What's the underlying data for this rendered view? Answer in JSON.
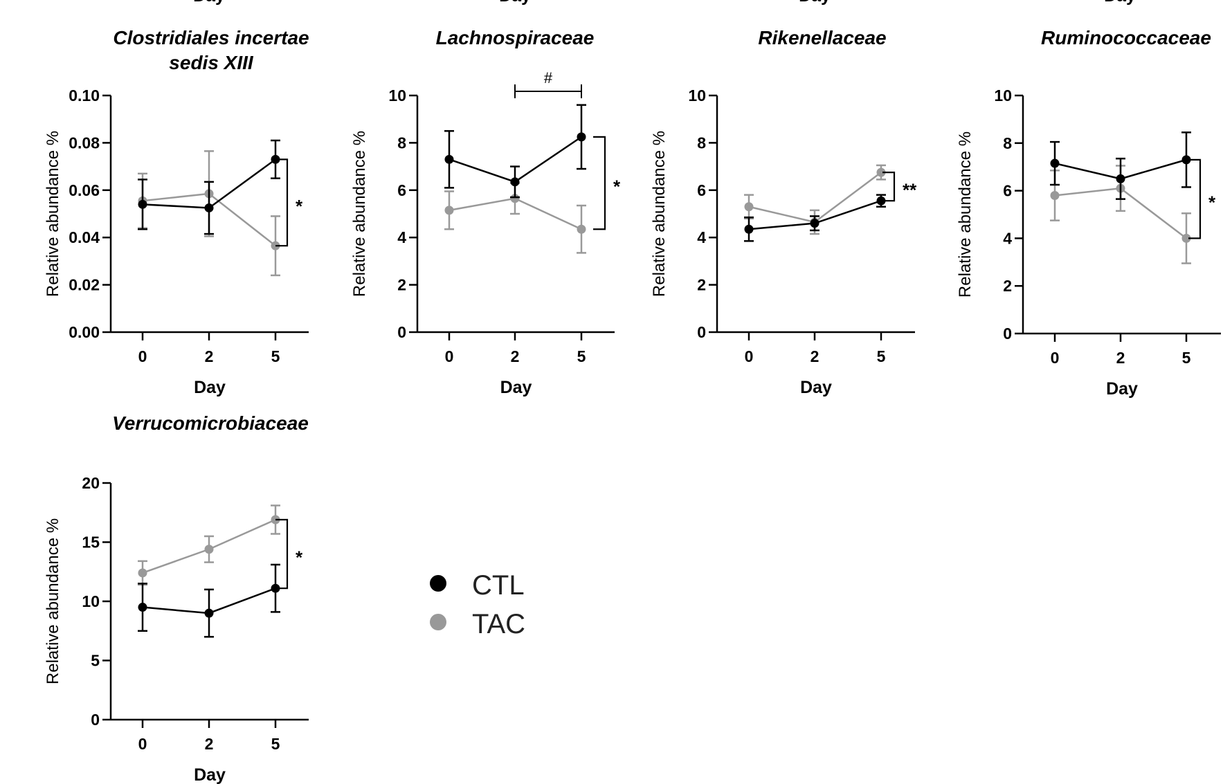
{
  "legend": [
    {
      "name": "CTL",
      "color": "#000000"
    },
    {
      "name": "TAC",
      "color": "#999999"
    }
  ],
  "top_row_xlabels": [
    "Day",
    "Day",
    "Day",
    "Day"
  ],
  "chart_data": [
    {
      "type": "line",
      "title": [
        "Clostridiales incertae",
        "sedis XIII"
      ],
      "xlabel": "Day",
      "ylabel": "Relative abundance %",
      "categories": [
        "0",
        "2",
        "5"
      ],
      "ylim": [
        0,
        0.1
      ],
      "yticks": [
        "0.00",
        "0.02",
        "0.04",
        "0.06",
        "0.08",
        "0.10"
      ],
      "series": [
        {
          "name": "CTL",
          "color": "#000000",
          "values": [
            0.054,
            0.0525,
            0.073
          ],
          "errors": [
            0.0105,
            0.011,
            0.008
          ]
        },
        {
          "name": "TAC",
          "color": "#999999",
          "values": [
            0.0555,
            0.0585,
            0.0365
          ],
          "errors": [
            0.0115,
            0.018,
            0.0125
          ]
        }
      ],
      "bracket": {
        "series_at": 2,
        "label": "*"
      }
    },
    {
      "type": "line",
      "title": [
        "Lachnospiraceae"
      ],
      "xlabel": "Day",
      "ylabel": "Relative abundance %",
      "categories": [
        "0",
        "2",
        "5"
      ],
      "ylim": [
        0,
        10
      ],
      "yticks": [
        "0",
        "2",
        "4",
        "6",
        "8",
        "10"
      ],
      "series": [
        {
          "name": "CTL",
          "color": "#000000",
          "values": [
            7.3,
            6.35,
            8.25
          ],
          "errors": [
            1.2,
            0.65,
            1.35
          ]
        },
        {
          "name": "TAC",
          "color": "#999999",
          "values": [
            5.15,
            5.65,
            4.35
          ],
          "errors": [
            0.8,
            0.65,
            1.0
          ]
        }
      ],
      "bracket": {
        "series_at": 2,
        "label": "*"
      },
      "pair_annotation": {
        "from": 1,
        "to": 2,
        "label": "#"
      }
    },
    {
      "type": "line",
      "title": [
        "Rikenellaceae"
      ],
      "xlabel": "Day",
      "ylabel": "Relative abundance %",
      "categories": [
        "0",
        "2",
        "5"
      ],
      "ylim": [
        0,
        10
      ],
      "yticks": [
        "0",
        "2",
        "4",
        "6",
        "8",
        "10"
      ],
      "series": [
        {
          "name": "CTL",
          "color": "#000000",
          "values": [
            4.35,
            4.6,
            5.55
          ],
          "errors": [
            0.5,
            0.3,
            0.25
          ]
        },
        {
          "name": "TAC",
          "color": "#999999",
          "values": [
            5.3,
            4.65,
            6.75
          ],
          "errors": [
            0.5,
            0.5,
            0.3
          ]
        }
      ],
      "bracket": {
        "series_at": 2,
        "label": "**"
      }
    },
    {
      "type": "line",
      "title": [
        "Ruminococcaceae"
      ],
      "xlabel": "Day",
      "ylabel": "Relative abundance %",
      "categories": [
        "0",
        "2",
        "5"
      ],
      "ylim": [
        0,
        10
      ],
      "yticks": [
        "0",
        "2",
        "4",
        "6",
        "8",
        "10"
      ],
      "series": [
        {
          "name": "CTL",
          "color": "#000000",
          "values": [
            7.15,
            6.5,
            7.3
          ],
          "errors": [
            0.9,
            0.85,
            1.15
          ]
        },
        {
          "name": "TAC",
          "color": "#999999",
          "values": [
            5.8,
            6.1,
            4.0
          ],
          "errors": [
            1.05,
            0.95,
            1.05
          ]
        }
      ],
      "bracket": {
        "series_at": 2,
        "label": "*"
      }
    },
    {
      "type": "line",
      "title": [
        "Verrucomicrobiaceae"
      ],
      "xlabel": "Day",
      "ylabel": "Relative abundance %",
      "categories": [
        "0",
        "2",
        "5"
      ],
      "ylim": [
        0,
        20
      ],
      "yticks": [
        "0",
        "5",
        "10",
        "15",
        "20"
      ],
      "series": [
        {
          "name": "CTL",
          "color": "#000000",
          "values": [
            9.5,
            9.0,
            11.1
          ],
          "errors": [
            2.0,
            2.0,
            2.0
          ]
        },
        {
          "name": "TAC",
          "color": "#999999",
          "values": [
            12.4,
            14.4,
            16.9
          ],
          "errors": [
            1.0,
            1.1,
            1.2
          ]
        }
      ],
      "bracket": {
        "series_at": 2,
        "label": "*"
      }
    }
  ]
}
